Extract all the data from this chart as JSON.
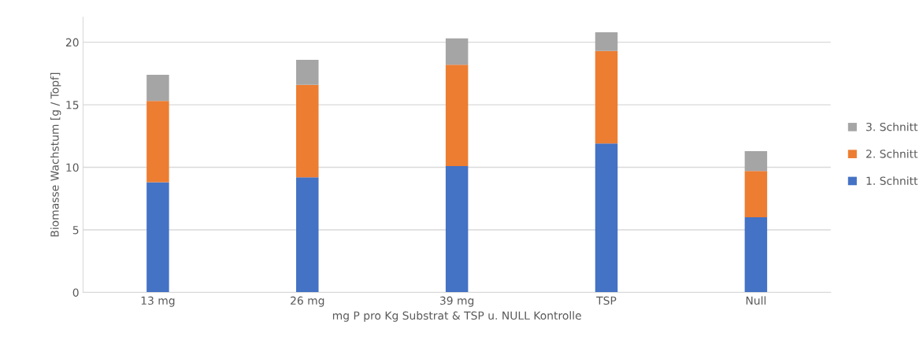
{
  "chart_data": {
    "type": "bar",
    "stacked": true,
    "xlabel": "mg P pro Kg Substrat & TSP u. NULL Kontrolle",
    "ylabel": "Biomasse Wachstum [g / Topf]",
    "categories": [
      "13 mg",
      "26 mg",
      "39 mg",
      "TSP",
      "Null"
    ],
    "series": [
      {
        "name": "1. Schnitt",
        "color": "#4472c4",
        "values": [
          8.8,
          9.2,
          10.1,
          11.9,
          6.0
        ]
      },
      {
        "name": "2. Schnitt",
        "color": "#ed7d31",
        "values": [
          6.5,
          7.4,
          8.1,
          7.4,
          3.7
        ]
      },
      {
        "name": "3. Schnitt",
        "color": "#a5a5a5",
        "values": [
          2.1,
          2.0,
          2.1,
          1.5,
          1.6
        ]
      }
    ],
    "ylim": [
      0,
      22
    ],
    "yticks": [
      0,
      5,
      10,
      15,
      20
    ],
    "grid": "y",
    "legend": "right"
  }
}
